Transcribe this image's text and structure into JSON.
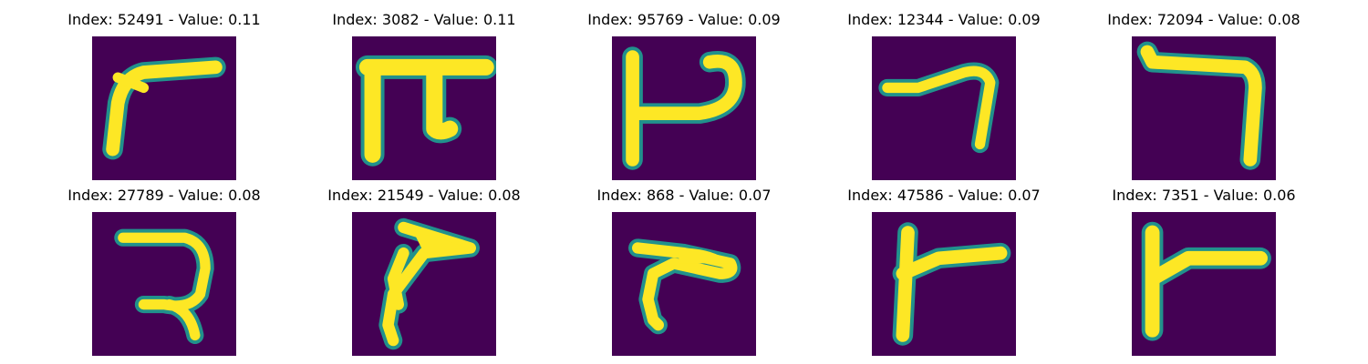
{
  "colors": {
    "background": "#440154",
    "stroke": "#fde725",
    "edge": "#21918c"
  },
  "panels": [
    {
      "title": "Index: 52491 - Value: 0.11",
      "glyph": "glyph-1"
    },
    {
      "title": "Index: 3082 - Value: 0.11",
      "glyph": "glyph-2"
    },
    {
      "title": "Index: 95769 - Value: 0.09",
      "glyph": "glyph-3"
    },
    {
      "title": "Index: 12344 - Value: 0.09",
      "glyph": "glyph-4"
    },
    {
      "title": "Index: 72094 - Value: 0.08",
      "glyph": "glyph-5"
    },
    {
      "title": "Index: 27789 - Value: 0.08",
      "glyph": "glyph-6"
    },
    {
      "title": "Index: 21549 - Value: 0.08",
      "glyph": "glyph-7"
    },
    {
      "title": "Index: 868 - Value: 0.07",
      "glyph": "glyph-8"
    },
    {
      "title": "Index: 47586 - Value: 0.07",
      "glyph": "glyph-9"
    },
    {
      "title": "Index: 7351 - Value: 0.06",
      "glyph": "glyph-10"
    }
  ]
}
